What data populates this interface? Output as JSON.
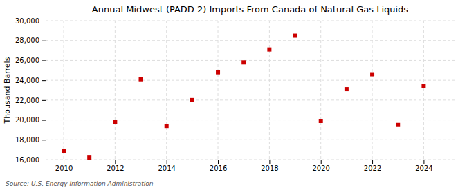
{
  "chart_data": {
    "type": "scatter",
    "title": "Annual Midwest (PADD 2) Imports From Canada of Natural Gas Liquids",
    "ylabel": "Thousand Barrels",
    "source": "Source: U.S. Energy Information Administration",
    "x": [
      2010,
      2011,
      2012,
      2013,
      2014,
      2015,
      2016,
      2017,
      2018,
      2019,
      2020,
      2021,
      2022,
      2023,
      2024
    ],
    "values": [
      16900,
      16200,
      19800,
      24100,
      19400,
      22000,
      24800,
      25800,
      27100,
      28500,
      19900,
      23100,
      24600,
      19500,
      23400
    ],
    "color": "#cc0000",
    "marker": "square",
    "grid": true,
    "xlim": [
      2009.3,
      2025.2
    ],
    "xticks": [
      2010,
      2012,
      2014,
      2016,
      2018,
      2020,
      2022,
      2024
    ],
    "ylim": [
      16000,
      30000
    ],
    "yticks": [
      {
        "value": 16000,
        "label": "16,000"
      },
      {
        "value": 18000,
        "label": "18,000"
      },
      {
        "value": 20000,
        "label": "20,000"
      },
      {
        "value": 22000,
        "label": "22,000"
      },
      {
        "value": 24000,
        "label": "24,000"
      },
      {
        "value": 26000,
        "label": "26,000"
      },
      {
        "value": 28000,
        "label": "28,000"
      },
      {
        "value": 30000,
        "label": "30,000"
      }
    ]
  }
}
